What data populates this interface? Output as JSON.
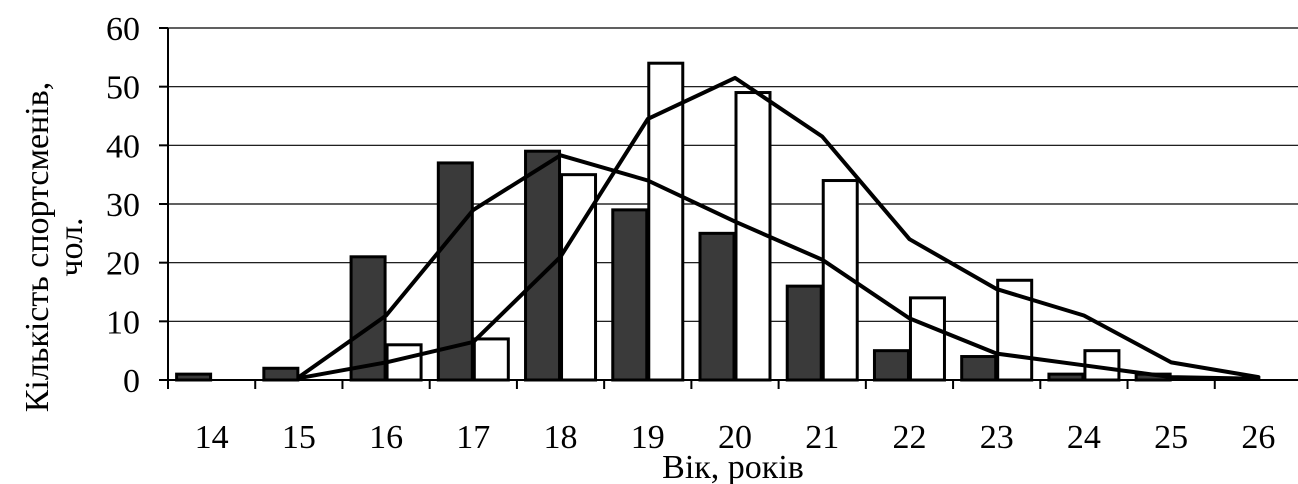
{
  "chart_data": {
    "type": "bar",
    "title": "",
    "xlabel": "Вік, років",
    "ylabel_line1": "Кількість спортсменів,",
    "ylabel_line2": "чол.",
    "ylim": [
      0,
      60
    ],
    "yticks": [
      "0",
      "10",
      "20",
      "30",
      "40",
      "50",
      "60"
    ],
    "grid": true,
    "categories": [
      "14",
      "15",
      "16",
      "17",
      "18",
      "19",
      "20",
      "21",
      "22",
      "23",
      "24",
      "25",
      "26"
    ],
    "series": [
      {
        "type": "bar",
        "color": "#3a3a3a",
        "values": [
          1,
          2,
          21,
          37,
          39,
          29,
          25,
          16,
          5,
          4,
          1,
          1,
          0
        ]
      },
      {
        "type": "bar",
        "color": "#ffffff",
        "values": [
          0,
          0,
          6,
          7,
          35,
          54,
          49,
          34,
          14,
          17,
          5,
          0,
          0
        ]
      },
      {
        "type": "line",
        "color": "#000000",
        "x": [
          15,
          16,
          17,
          18,
          19,
          20,
          21,
          22,
          23,
          24,
          25,
          26
        ],
        "values": [
          0.5,
          11,
          29,
          38.3,
          34,
          27,
          20.5,
          10.5,
          4.5,
          2.5,
          0.5,
          0.2
        ]
      },
      {
        "type": "line",
        "color": "#000000",
        "x": [
          15,
          16,
          17,
          18,
          19,
          20,
          21,
          22,
          23,
          24,
          25,
          26
        ],
        "values": [
          0.3,
          3,
          6.5,
          21,
          44.5,
          51.5,
          41.5,
          24,
          15.5,
          11,
          3,
          0.5
        ]
      }
    ]
  }
}
